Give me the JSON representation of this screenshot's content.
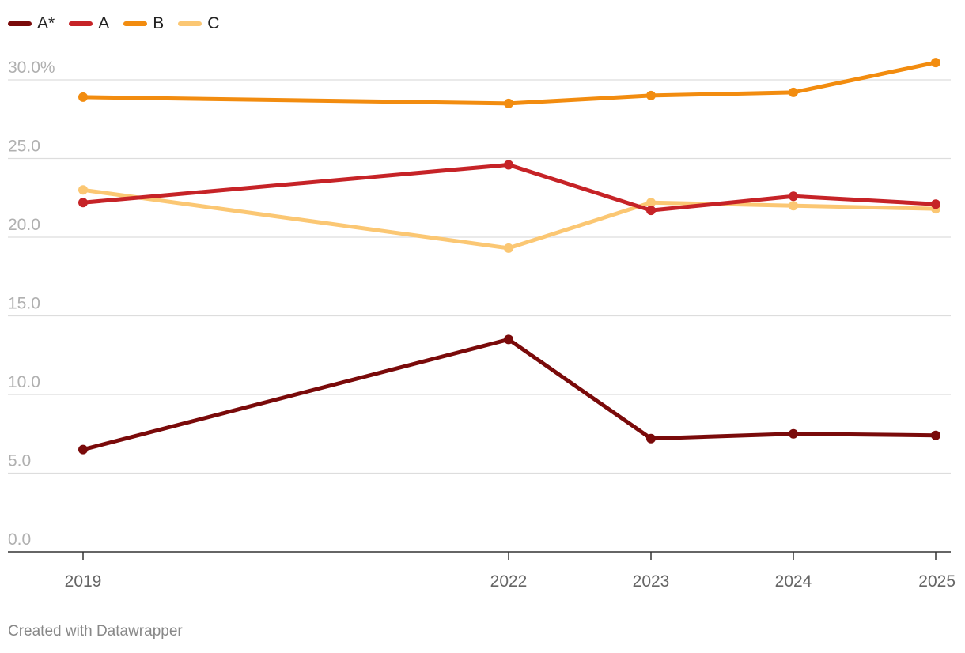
{
  "chart_data": {
    "type": "line",
    "x": [
      "2019",
      "2022",
      "2023",
      "2024",
      "2025"
    ],
    "ylim": [
      0,
      30
    ],
    "y_ticks": [
      0,
      5,
      10,
      15,
      20,
      25,
      30
    ],
    "y_tick_labels": [
      "0.0",
      "5.0",
      "10.0",
      "15.0",
      "20.0",
      "25.0",
      "30.0%"
    ],
    "grid": true,
    "legend_position": "top-left",
    "series": [
      {
        "name": "A*",
        "color": "#7a0a0a",
        "values": [
          6.5,
          13.5,
          7.2,
          7.5,
          7.4
        ]
      },
      {
        "name": "A",
        "color": "#c62327",
        "values": [
          22.2,
          24.6,
          21.7,
          22.6,
          22.1
        ]
      },
      {
        "name": "B",
        "color": "#f28c0f",
        "values": [
          28.9,
          28.5,
          29.0,
          29.2,
          31.1
        ]
      },
      {
        "name": "C",
        "color": "#fbc773",
        "values": [
          23.0,
          19.3,
          22.2,
          22.0,
          21.8
        ]
      }
    ]
  },
  "footer": {
    "credit": "Created with Datawrapper"
  }
}
